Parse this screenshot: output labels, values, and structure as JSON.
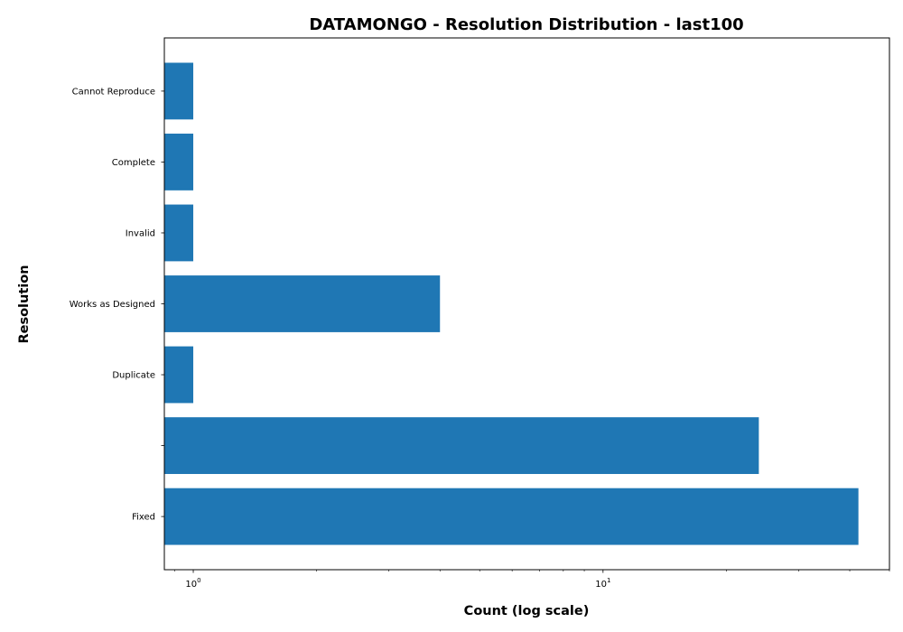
{
  "chart_data": {
    "type": "bar",
    "orientation": "horizontal",
    "title": "DATAMONGO - Resolution Distribution - last100",
    "xlabel": "Count (log scale)",
    "ylabel": "Resolution",
    "x_scale": "log",
    "xlim": [
      0.85,
      50
    ],
    "x_ticks": [
      {
        "value": 1,
        "base": "10",
        "exp": "0"
      },
      {
        "value": 10,
        "base": "10",
        "exp": "1"
      }
    ],
    "categories": [
      "Fixed",
      "",
      "Duplicate",
      "Works as Designed",
      "Invalid",
      "Complete",
      "Cannot Reproduce"
    ],
    "values": [
      42,
      24,
      1,
      4,
      1,
      1,
      1
    ],
    "bar_color": "#1f77b4",
    "grid": false,
    "legend": "none"
  }
}
